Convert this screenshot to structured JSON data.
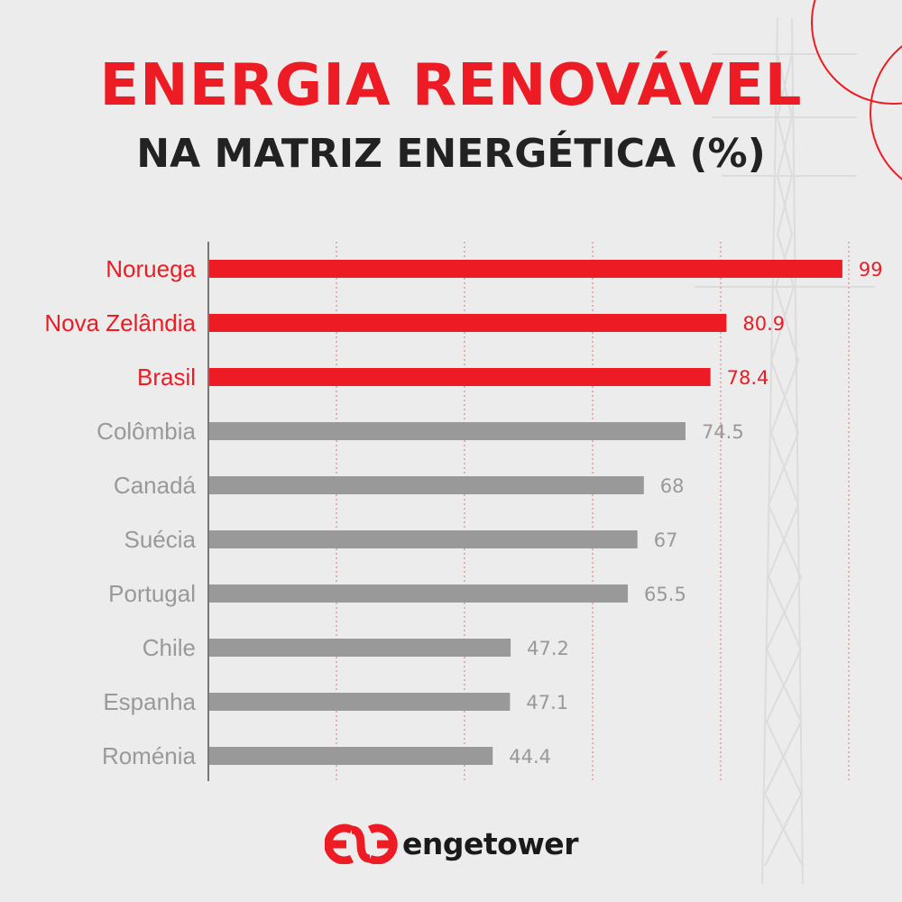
{
  "title": "ENERGIA RENOVÁVEL",
  "subtitle": "NA MATRIZ ENERGÉTICA (%)",
  "brand": {
    "name": "engetower",
    "color": "#ed1c24"
  },
  "colors": {
    "highlight": "#ed1c24",
    "default": "#999999",
    "label_default": "#999999"
  },
  "chart_data": {
    "type": "bar",
    "orientation": "horizontal",
    "title": "ENERGIA RENOVÁVEL",
    "subtitle": "NA MATRIZ ENERGÉTICA (%)",
    "categories": [
      "Noruega",
      "Nova Zelândia",
      "Brasil",
      "Colômbia",
      "Canadá",
      "Suécia",
      "Portugal",
      "Chile",
      "Espanha",
      "Roménia"
    ],
    "values": [
      99,
      80.9,
      78.4,
      74.5,
      68,
      67,
      65.5,
      47.2,
      47.1,
      44.4
    ],
    "value_labels": [
      "99",
      "80.9",
      "78.4",
      "74.5",
      "68",
      "67",
      "65.5",
      "47.2",
      "47.1",
      "44.4"
    ],
    "highlighted": [
      true,
      true,
      true,
      false,
      false,
      false,
      false,
      false,
      false,
      false
    ],
    "xlim": [
      0,
      100
    ],
    "gridlines": [
      20,
      40,
      60,
      80,
      100
    ],
    "grid": "vertical dotted",
    "legend": "none"
  }
}
